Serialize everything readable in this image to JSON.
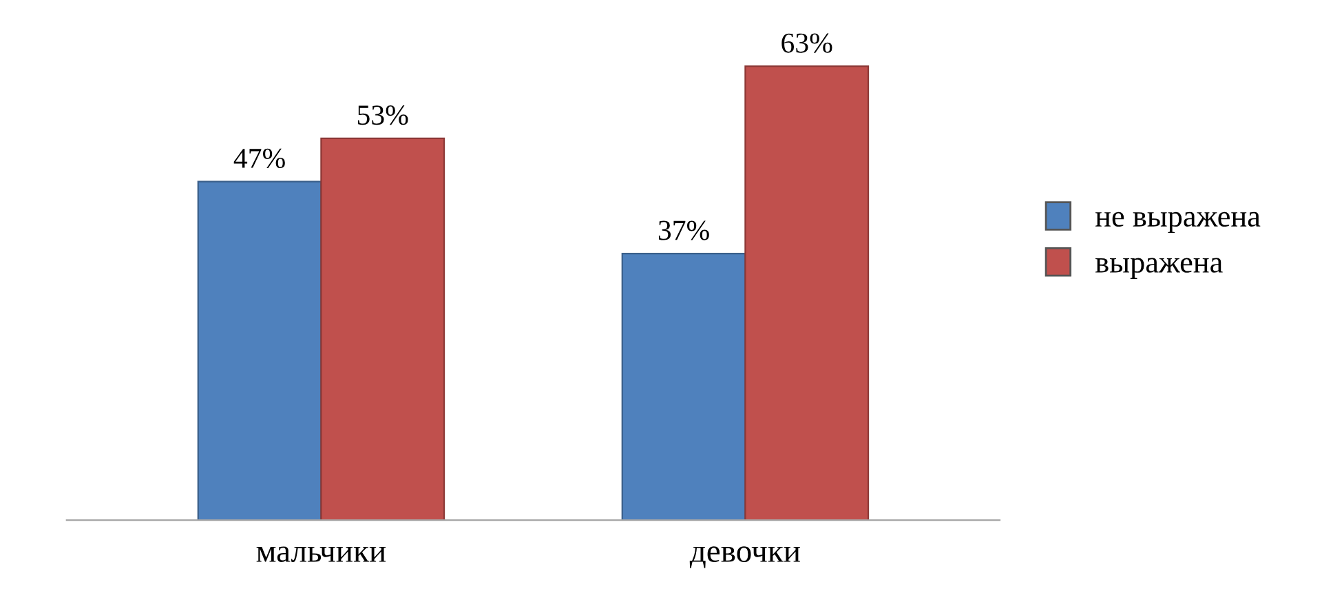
{
  "chart_data": {
    "type": "bar",
    "categories": [
      "мальчики",
      "девочки"
    ],
    "series": [
      {
        "name": "не выражена",
        "color": "#4f81bd",
        "values": [
          47,
          37
        ],
        "value_labels": [
          "47%",
          "37%"
        ]
      },
      {
        "name": "выражена",
        "color": "#c0504d",
        "values": [
          53,
          63
        ],
        "value_labels": [
          "53%",
          "63%"
        ]
      }
    ],
    "legend": "right",
    "grid": false,
    "tick_labels": "x"
  }
}
